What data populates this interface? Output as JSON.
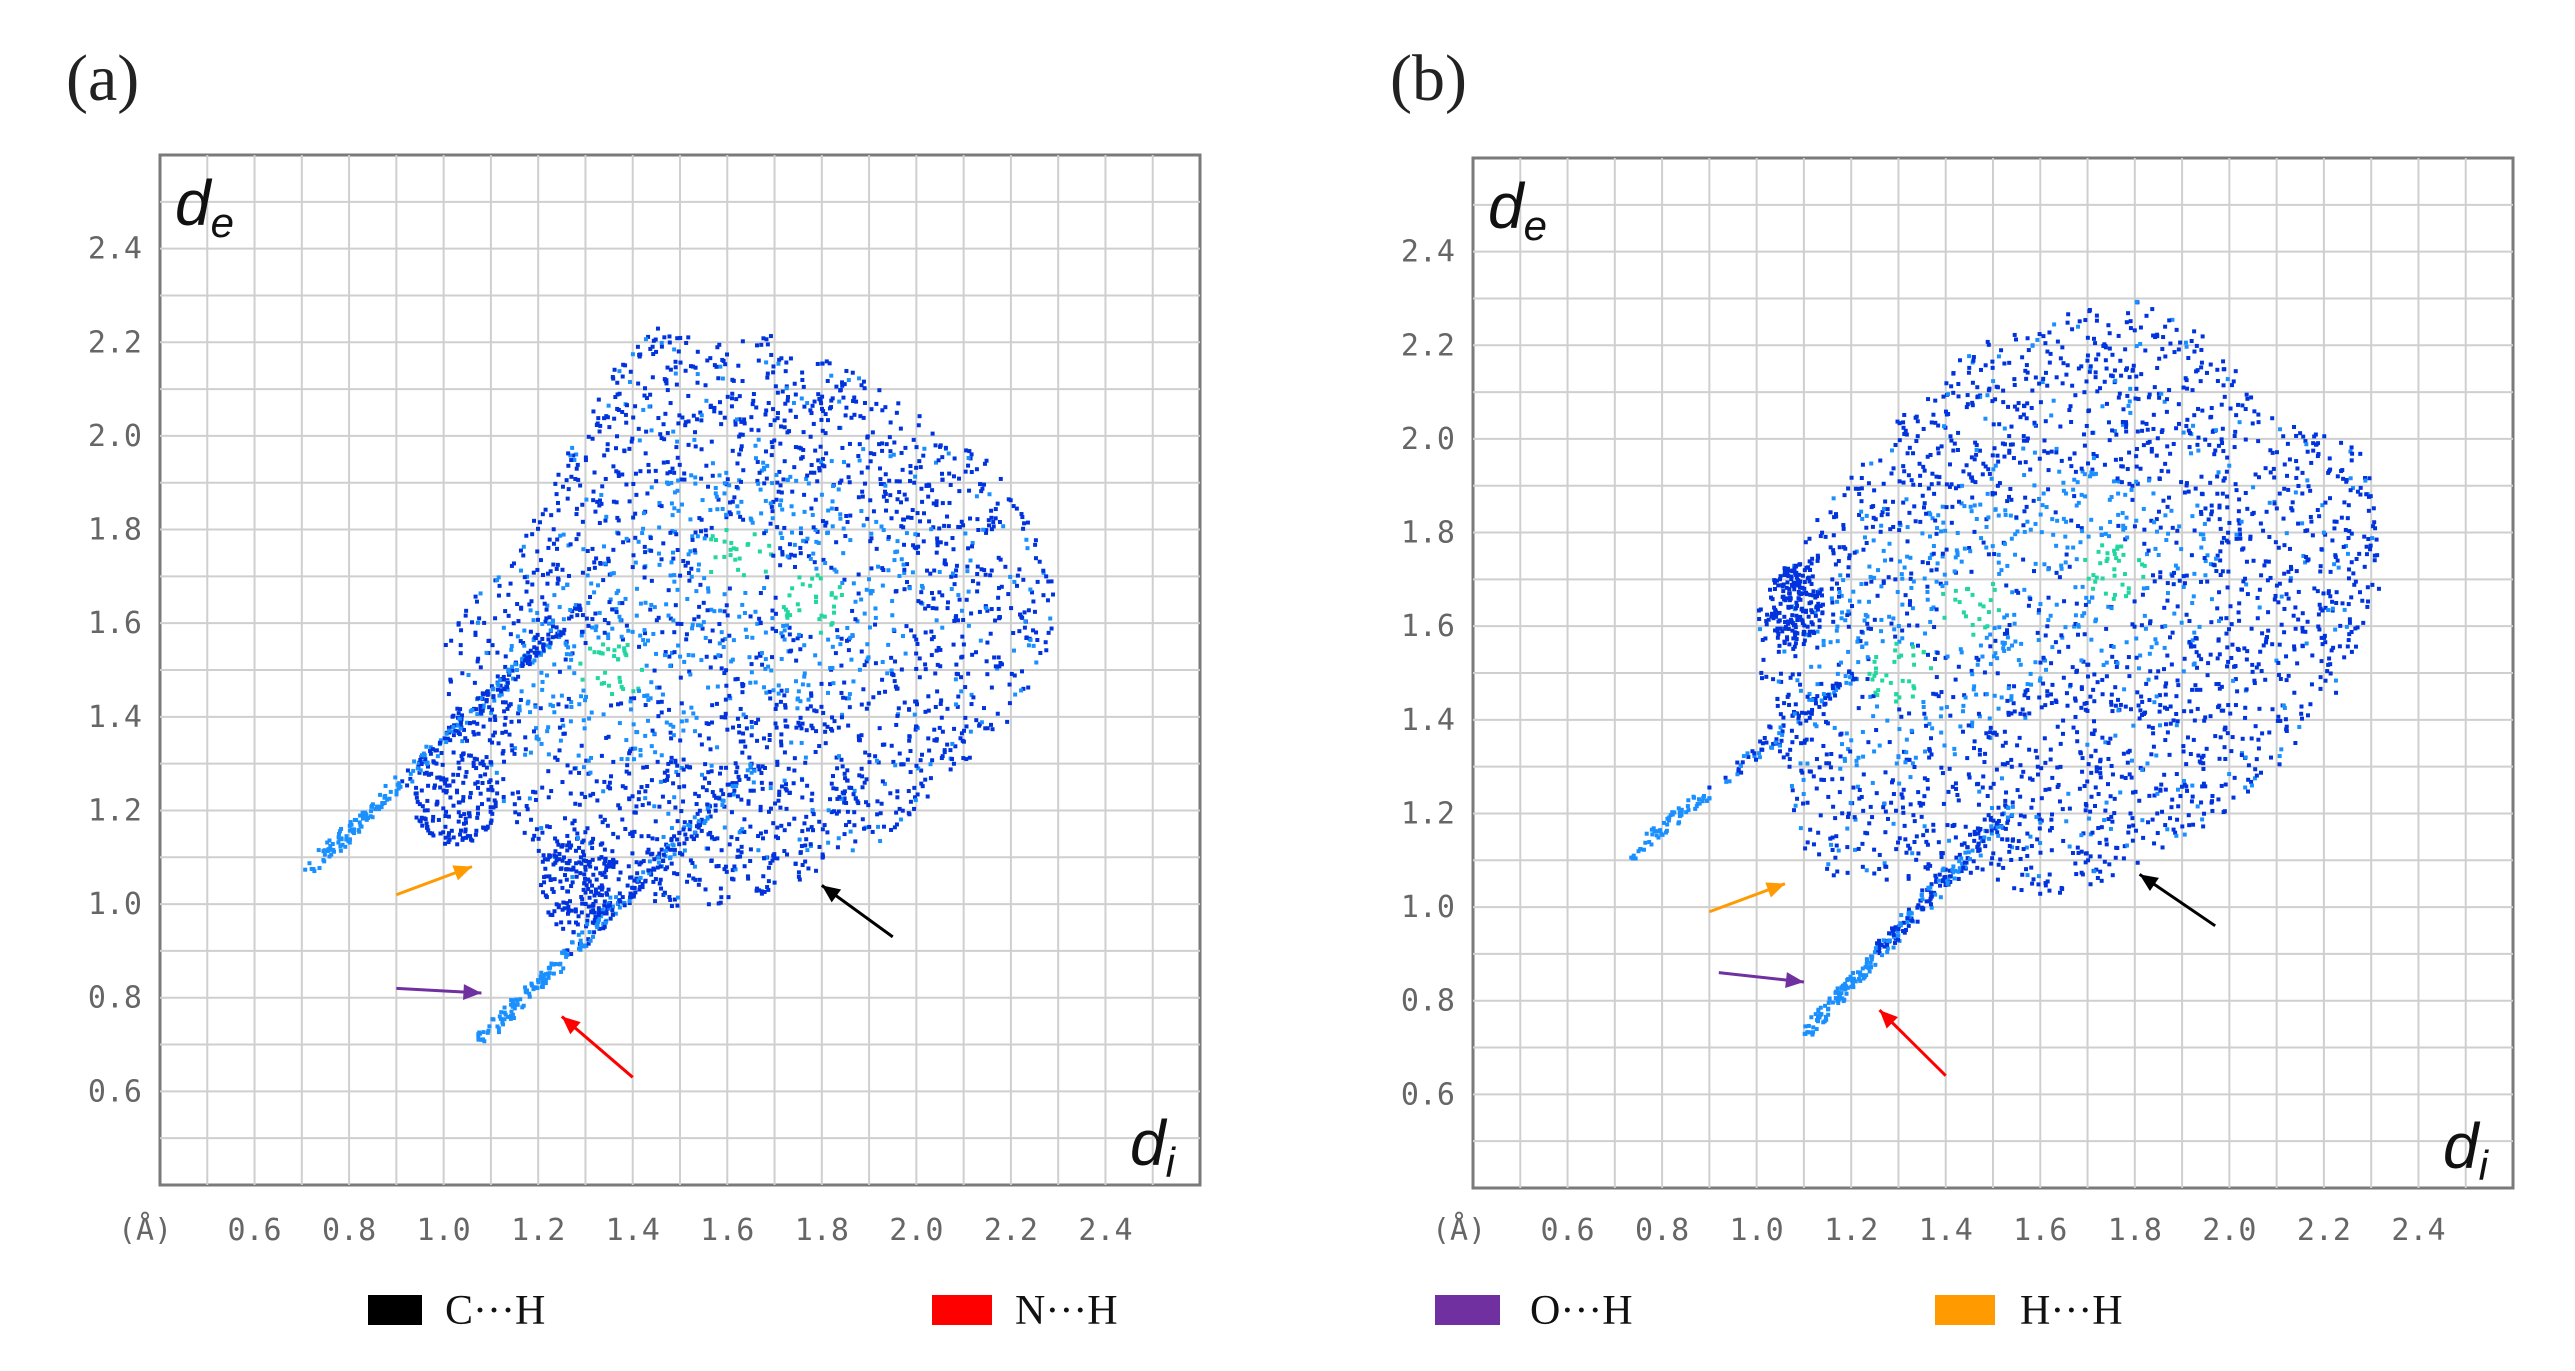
{
  "colors": {
    "C_H": "#000000",
    "N_H": "#ff0000",
    "O_H": "#7030a0",
    "H_H": "#ff9a00",
    "point_low": "#0033dd",
    "point_mid": "#1a90ff",
    "point_high": "#22d6a0"
  },
  "chart_data": [
    {
      "type": "scatter",
      "panel_label": "(a)",
      "title": "",
      "xlabel": {
        "base": "d",
        "sub": "i"
      },
      "ylabel": {
        "base": "d",
        "sub": "e"
      },
      "xlim": [
        0.4,
        2.6
      ],
      "ylim": [
        0.4,
        2.6
      ],
      "x_unit_label": "(Å)",
      "x_ticks": [
        "0.6",
        "0.8",
        "1.0",
        "1.2",
        "1.4",
        "1.6",
        "1.8",
        "2.0",
        "2.2",
        "2.4"
      ],
      "y_ticks": [
        "0.6",
        "0.8",
        "1.0",
        "1.2",
        "1.4",
        "1.6",
        "1.8",
        "2.0",
        "2.2",
        "2.4"
      ],
      "region_polygon": [
        [
          1.0,
          1.6
        ],
        [
          1.15,
          1.75
        ],
        [
          1.25,
          1.95
        ],
        [
          1.35,
          2.15
        ],
        [
          1.45,
          2.25
        ],
        [
          1.55,
          2.2
        ],
        [
          1.7,
          2.22
        ],
        [
          1.85,
          2.15
        ],
        [
          2.0,
          2.05
        ],
        [
          2.15,
          1.95
        ],
        [
          2.25,
          1.8
        ],
        [
          2.3,
          1.65
        ],
        [
          2.25,
          1.45
        ],
        [
          2.1,
          1.3
        ],
        [
          1.9,
          1.12
        ],
        [
          1.75,
          1.05
        ],
        [
          1.6,
          1.0
        ],
        [
          1.45,
          1.0
        ],
        [
          1.3,
          1.0
        ],
        [
          1.2,
          1.1
        ],
        [
          1.1,
          1.25
        ],
        [
          1.0,
          1.4
        ]
      ],
      "spikes": [
        {
          "from": [
            0.7,
            1.06
          ],
          "to": [
            1.25,
            1.6
          ]
        },
        {
          "from": [
            0.73,
            1.1
          ],
          "to": [
            1.3,
            1.65
          ]
        },
        {
          "from": [
            1.07,
            0.71
          ],
          "to": [
            1.6,
            1.25
          ]
        },
        {
          "from": [
            1.1,
            0.73
          ],
          "to": [
            1.65,
            1.3
          ]
        }
      ],
      "wings": [
        {
          "center": [
            1.02,
            1.23
          ],
          "rx": 0.09,
          "ry": 0.1
        },
        {
          "center": [
            1.28,
            1.05
          ],
          "rx": 0.08,
          "ry": 0.11
        }
      ],
      "hotspots": [
        [
          1.62,
          1.75
        ],
        [
          1.78,
          1.65
        ],
        [
          1.35,
          1.5
        ]
      ],
      "arrows": [
        {
          "contact": "C···H",
          "color_key": "C_H",
          "from": [
            1.95,
            0.93
          ],
          "to": [
            1.8,
            1.04
          ]
        },
        {
          "contact": "N···H",
          "color_key": "N_H",
          "from": [
            1.4,
            0.63
          ],
          "to": [
            1.25,
            0.76
          ]
        },
        {
          "contact": "O···H",
          "color_key": "O_H",
          "from": [
            0.9,
            0.82
          ],
          "to": [
            1.08,
            0.81
          ]
        },
        {
          "contact": "H···H",
          "color_key": "H_H",
          "from": [
            0.9,
            1.02
          ],
          "to": [
            1.06,
            1.08
          ]
        }
      ]
    },
    {
      "type": "scatter",
      "panel_label": "(b)",
      "title": "",
      "xlabel": {
        "base": "d",
        "sub": "i"
      },
      "ylabel": {
        "base": "d",
        "sub": "e"
      },
      "xlim": [
        0.4,
        2.6
      ],
      "ylim": [
        0.4,
        2.6
      ],
      "x_unit_label": "(Å)",
      "x_ticks": [
        "0.6",
        "0.8",
        "1.0",
        "1.2",
        "1.4",
        "1.6",
        "1.8",
        "2.0",
        "2.2",
        "2.4"
      ],
      "y_ticks": [
        "0.6",
        "0.8",
        "1.0",
        "1.2",
        "1.4",
        "1.6",
        "1.8",
        "2.0",
        "2.2",
        "2.4"
      ],
      "region_polygon": [
        [
          1.0,
          1.65
        ],
        [
          1.1,
          1.8
        ],
        [
          1.25,
          2.0
        ],
        [
          1.45,
          2.2
        ],
        [
          1.65,
          2.28
        ],
        [
          1.8,
          2.3
        ],
        [
          1.95,
          2.22
        ],
        [
          2.1,
          2.05
        ],
        [
          2.3,
          1.97
        ],
        [
          2.32,
          1.7
        ],
        [
          2.25,
          1.5
        ],
        [
          2.1,
          1.3
        ],
        [
          1.95,
          1.18
        ],
        [
          1.82,
          1.1
        ],
        [
          1.72,
          1.05
        ],
        [
          1.62,
          1.02
        ],
        [
          1.52,
          1.05
        ],
        [
          1.4,
          1.08
        ],
        [
          1.2,
          1.03
        ],
        [
          1.1,
          1.12
        ],
        [
          1.05,
          1.3
        ],
        [
          1.0,
          1.45
        ]
      ],
      "spikes": [
        {
          "from": [
            0.72,
            1.11
          ],
          "to": [
            1.2,
            1.5
          ]
        },
        {
          "from": [
            1.1,
            0.73
          ],
          "to": [
            1.5,
            1.2
          ]
        },
        {
          "from": [
            1.12,
            0.76
          ],
          "to": [
            1.55,
            1.22
          ]
        }
      ],
      "wings": [
        {
          "center": [
            1.08,
            1.65
          ],
          "rx": 0.06,
          "ry": 0.09
        }
      ],
      "hotspots": [
        [
          1.75,
          1.72
        ],
        [
          1.45,
          1.65
        ],
        [
          1.3,
          1.5
        ]
      ],
      "arrows": [
        {
          "contact": "C···H",
          "color_key": "C_H",
          "from": [
            1.97,
            0.96
          ],
          "to": [
            1.81,
            1.07
          ]
        },
        {
          "contact": "N···H",
          "color_key": "N_H",
          "from": [
            1.4,
            0.64
          ],
          "to": [
            1.26,
            0.78
          ]
        },
        {
          "contact": "O···H",
          "color_key": "O_H",
          "from": [
            0.92,
            0.86
          ],
          "to": [
            1.1,
            0.84
          ]
        },
        {
          "contact": "H···H",
          "color_key": "H_H",
          "from": [
            0.9,
            0.99
          ],
          "to": [
            1.06,
            1.05
          ]
        }
      ]
    }
  ],
  "legend": [
    {
      "label": "C···H",
      "color_key": "C_H"
    },
    {
      "label": "N···H",
      "color_key": "N_H"
    },
    {
      "label": "O···H",
      "color_key": "O_H"
    },
    {
      "label": "H···H",
      "color_key": "H_H"
    }
  ]
}
